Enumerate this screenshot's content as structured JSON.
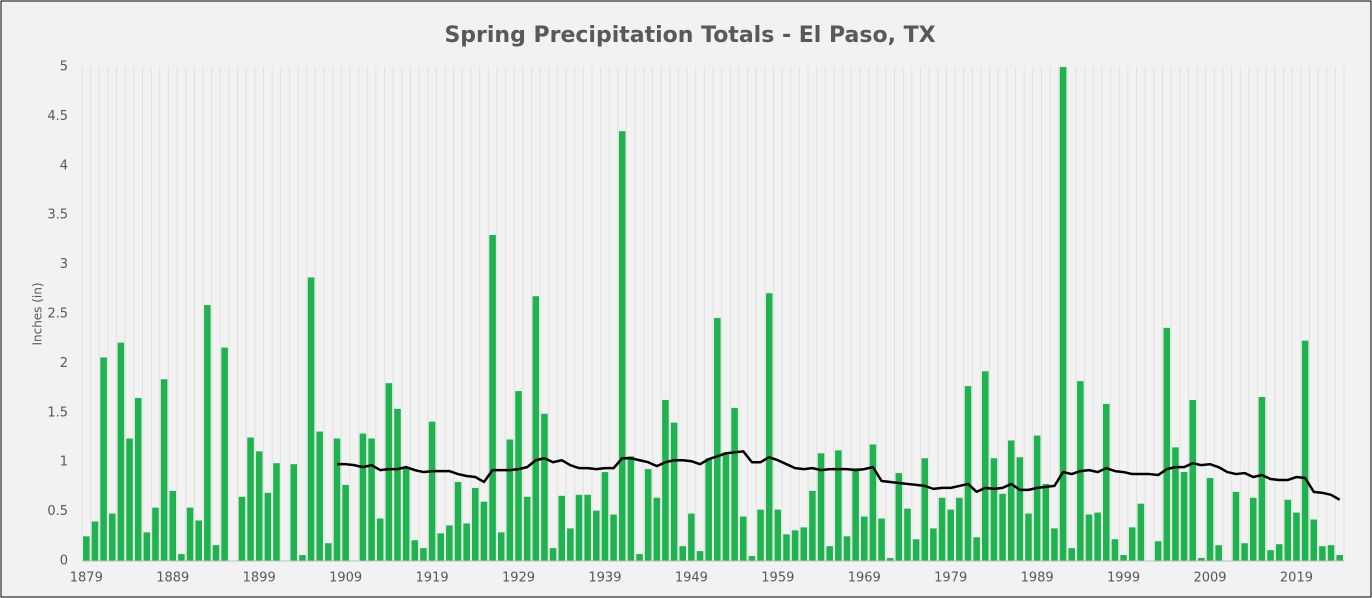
{
  "chart_data": {
    "type": "bar",
    "title": "Spring Precipitation Totals - El Paso, TX",
    "y_label": "Inches (in)",
    "categories": [
      "1879",
      null,
      null,
      null,
      null,
      null,
      null,
      null,
      null,
      null,
      "1889",
      null,
      null,
      null,
      null,
      null,
      null,
      null,
      null,
      null,
      "1899",
      null,
      null,
      null,
      null,
      null,
      null,
      null,
      null,
      null,
      "1909",
      null,
      null,
      null,
      null,
      null,
      null,
      null,
      null,
      null,
      "1919",
      null,
      null,
      null,
      null,
      null,
      null,
      null,
      null,
      null,
      "1929",
      null,
      null,
      null,
      null,
      null,
      null,
      null,
      null,
      null,
      "1939",
      null,
      null,
      null,
      null,
      null,
      null,
      null,
      null,
      null,
      "1949",
      null,
      null,
      null,
      null,
      null,
      null,
      null,
      null,
      null,
      "1959",
      null,
      null,
      null,
      null,
      null,
      null,
      null,
      null,
      null,
      "1969",
      null,
      null,
      null,
      null,
      null,
      null,
      null,
      null,
      null,
      "1979",
      null,
      null,
      null,
      null,
      null,
      null,
      null,
      null,
      null,
      "1989",
      null,
      null,
      null,
      null,
      null,
      null,
      null,
      null,
      null,
      "1999",
      null,
      null,
      null,
      null,
      null,
      null,
      null,
      null,
      null,
      "2009",
      null,
      null,
      null,
      null,
      null,
      null,
      null,
      null,
      null,
      "2019",
      null,
      null,
      null,
      null,
      null
    ],
    "series": [
      {
        "type": "bar",
        "color": "#1fb34f",
        "values": [
          0.25,
          0.4,
          2.06,
          0.48,
          2.21,
          1.24,
          1.65,
          0.29,
          0.54,
          1.84,
          0.71,
          0.07,
          0.54,
          0.41,
          2.59,
          0.16,
          2.16,
          null,
          0.65,
          1.25,
          1.11,
          0.69,
          0.99,
          null,
          0.98,
          0.06,
          2.87,
          1.31,
          0.18,
          1.24,
          0.77,
          null,
          1.29,
          1.24,
          0.43,
          1.8,
          1.54,
          0.95,
          0.21,
          0.13,
          1.41,
          0.28,
          0.36,
          0.8,
          0.38,
          0.74,
          0.6,
          3.3,
          0.29,
          1.23,
          1.72,
          0.65,
          2.68,
          1.49,
          0.13,
          0.66,
          0.33,
          0.67,
          0.67,
          0.51,
          0.9,
          0.47,
          4.35,
          1.06,
          0.07,
          0.93,
          0.64,
          1.63,
          1.4,
          0.15,
          0.48,
          0.1,
          1.04,
          2.46,
          1.1,
          1.55,
          0.45,
          0.05,
          0.52,
          2.71,
          0.52,
          0.27,
          0.31,
          0.34,
          0.71,
          1.09,
          0.15,
          1.12,
          0.25,
          0.94,
          0.45,
          1.18,
          0.43,
          0.03,
          0.89,
          0.53,
          0.22,
          1.04,
          0.33,
          0.64,
          0.52,
          0.64,
          1.77,
          0.24,
          1.92,
          1.04,
          0.68,
          1.22,
          1.05,
          0.48,
          1.27,
          0.78,
          0.33,
          5.0,
          0.13,
          1.82,
          0.47,
          0.49,
          1.59,
          0.22,
          0.06,
          0.34,
          0.58,
          null,
          0.2,
          2.36,
          1.15,
          0.9,
          1.63,
          0.03,
          0.84,
          0.16,
          null,
          0.7,
          0.18,
          0.64,
          1.66,
          0.11,
          0.17,
          0.62,
          0.49,
          2.23,
          0.42,
          0.15,
          0.16,
          0.06
        ]
      },
      {
        "type": "line",
        "color": "#000000",
        "values": [
          null,
          null,
          null,
          null,
          null,
          null,
          null,
          null,
          null,
          null,
          null,
          null,
          null,
          null,
          null,
          null,
          null,
          null,
          null,
          null,
          null,
          null,
          null,
          null,
          null,
          null,
          null,
          null,
          null,
          0.98,
          0.98,
          0.97,
          0.95,
          0.97,
          0.92,
          0.93,
          0.93,
          0.95,
          0.92,
          0.9,
          0.91,
          0.91,
          0.91,
          0.88,
          0.86,
          0.85,
          0.8,
          0.92,
          0.92,
          0.92,
          0.93,
          0.95,
          1.02,
          1.04,
          1.0,
          1.02,
          0.97,
          0.94,
          0.94,
          0.93,
          0.94,
          0.94,
          1.04,
          1.04,
          1.02,
          1.0,
          0.96,
          1.0,
          1.02,
          1.02,
          1.01,
          0.98,
          1.03,
          1.06,
          1.09,
          1.1,
          1.11,
          1.0,
          1.0,
          1.05,
          1.02,
          0.98,
          0.94,
          0.93,
          0.94,
          0.92,
          0.93,
          0.93,
          0.93,
          0.92,
          0.93,
          0.95,
          0.81,
          0.8,
          0.79,
          0.78,
          0.77,
          0.76,
          0.73,
          0.74,
          0.74,
          0.76,
          0.78,
          0.7,
          0.74,
          0.73,
          0.74,
          0.78,
          0.72,
          0.72,
          0.74,
          0.75,
          0.76,
          0.9,
          0.88,
          0.91,
          0.92,
          0.9,
          0.94,
          0.91,
          0.9,
          0.88,
          0.88,
          0.88,
          0.87,
          0.93,
          0.95,
          0.95,
          0.99,
          0.97,
          0.98,
          0.95,
          0.9,
          0.88,
          0.89,
          0.85,
          0.87,
          0.83,
          0.82,
          0.82,
          0.85,
          0.84,
          0.7,
          0.69,
          0.67,
          0.62
        ]
      }
    ],
    "ylim": [
      0,
      5
    ],
    "yticks": [
      0,
      0.5,
      1,
      1.5,
      2,
      2.5,
      3,
      3.5,
      4,
      4.5,
      5
    ],
    "grid": "x"
  }
}
